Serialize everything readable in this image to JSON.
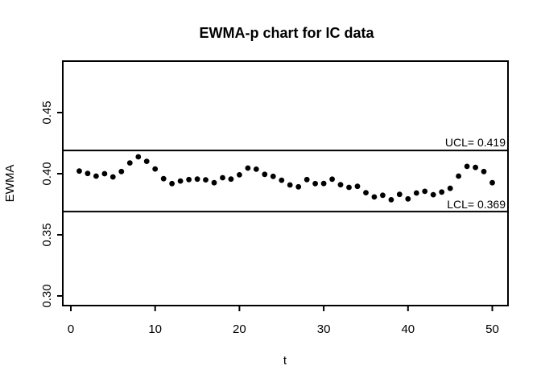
{
  "figure": {
    "background_color": "#ffffff",
    "foreground_color": "#000000"
  },
  "chart_data": {
    "type": "scatter",
    "title": "EWMA-p chart for IC data",
    "xlabel": "t",
    "ylabel": "EWMA",
    "grid": false,
    "legend": "none",
    "point_style": "filled-circle",
    "point_color": "#000000",
    "line_color": "#000000",
    "xlim": [
      -0.96,
      51.9
    ],
    "ylim": [
      0.292,
      0.492
    ],
    "xticks": [
      0,
      10,
      20,
      30,
      40,
      50
    ],
    "xtick_labels": [
      "0",
      "10",
      "20",
      "30",
      "40",
      "50"
    ],
    "yticks": [
      0.3,
      0.35,
      0.4,
      0.45
    ],
    "ytick_labels": [
      "0.30",
      "0.35",
      "0.40",
      "0.45"
    ],
    "x": [
      1,
      2,
      3,
      4,
      5,
      6,
      7,
      8,
      9,
      10,
      11,
      12,
      13,
      14,
      15,
      16,
      17,
      18,
      19,
      20,
      21,
      22,
      23,
      24,
      25,
      26,
      27,
      28,
      29,
      30,
      31,
      32,
      33,
      34,
      35,
      36,
      37,
      38,
      39,
      40,
      41,
      42,
      43,
      44,
      45,
      46,
      47,
      48,
      49,
      50
    ],
    "values": [
      0.4022,
      0.4002,
      0.398,
      0.4,
      0.3974,
      0.4018,
      0.4088,
      0.4138,
      0.4101,
      0.4039,
      0.3959,
      0.3919,
      0.394,
      0.3952,
      0.3956,
      0.395,
      0.3926,
      0.3967,
      0.3956,
      0.3991,
      0.4046,
      0.4037,
      0.3995,
      0.3978,
      0.3947,
      0.3908,
      0.3893,
      0.3952,
      0.3919,
      0.392,
      0.3955,
      0.391,
      0.3888,
      0.3897,
      0.3845,
      0.381,
      0.3824,
      0.3787,
      0.3831,
      0.3794,
      0.3842,
      0.3856,
      0.3828,
      0.385,
      0.388,
      0.398,
      0.406,
      0.4051,
      0.4018,
      0.3926
    ],
    "control_limits": {
      "ucl": {
        "value": 0.419,
        "label": "UCL= 0.419"
      },
      "lcl": {
        "value": 0.369,
        "label": "LCL= 0.369"
      }
    }
  }
}
